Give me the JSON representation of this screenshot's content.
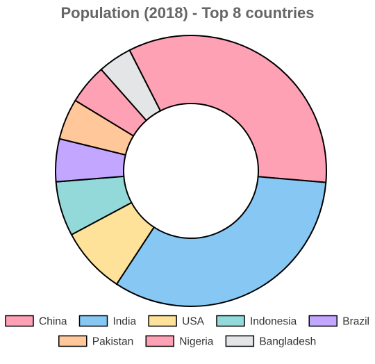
{
  "chart_data": {
    "type": "doughnut",
    "title": "Population (2018) - Top 8 countries",
    "categories": [
      "China",
      "India",
      "USA",
      "Indonesia",
      "Brazil",
      "Pakistan",
      "Nigeria",
      "Bangladesh"
    ],
    "values": [
      1393,
      1353,
      327,
      268,
      210,
      201,
      196,
      166
    ],
    "colors": [
      "#FFA1B5",
      "#86C7F3",
      "#FFE29A",
      "#93D9D9",
      "#C3A6FF",
      "#FFC79A",
      "#FFA1B5",
      "#E4E5E7"
    ],
    "border_color": "#000000",
    "legend_position": "bottom"
  }
}
